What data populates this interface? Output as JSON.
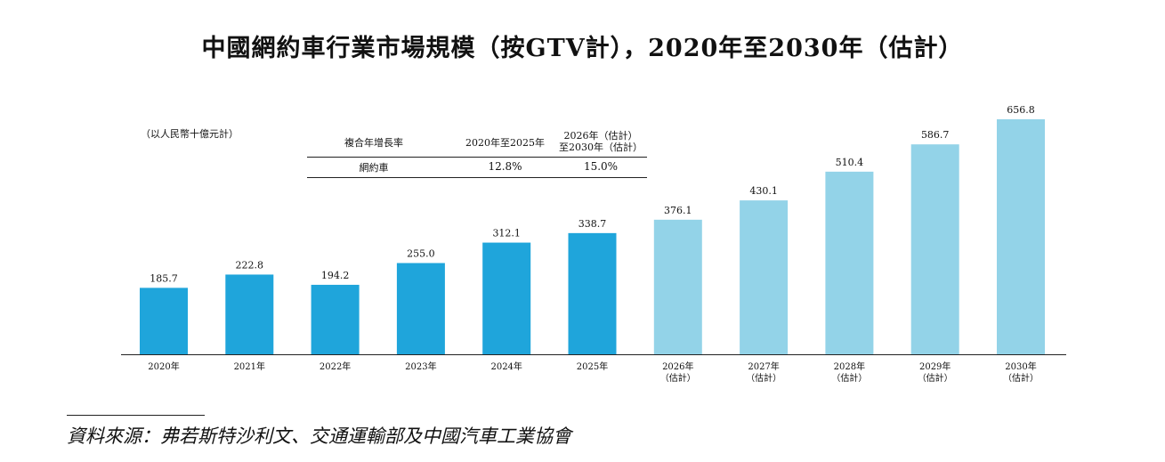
{
  "chart_data": {
    "type": "bar",
    "title": "中國網約車行業市場規模（按GTV計），2020年至2030年（估計）",
    "unit_note": "（以人民幣十億元計）",
    "categories": [
      "2020年",
      "2021年",
      "2022年",
      "2023年",
      "2024年",
      "2025年",
      "2026年",
      "2027年",
      "2028年",
      "2029年",
      "2030年"
    ],
    "category_sublabels": [
      "",
      "",
      "",
      "",
      "",
      "",
      "（估計）",
      "（估計）",
      "（估計）",
      "（估計）",
      "（估計）"
    ],
    "values": [
      185.7,
      222.8,
      194.2,
      255.0,
      312.1,
      338.7,
      376.1,
      430.1,
      510.4,
      586.7,
      656.8
    ],
    "value_labels": [
      "185.7",
      "222.8",
      "194.2",
      "255.0",
      "312.1",
      "338.7",
      "376.1",
      "430.1",
      "510.4",
      "586.7",
      "656.8"
    ],
    "colors": {
      "actual": "#1fa5db",
      "estimated": "#93d3e8"
    },
    "estimated_from_index": 6,
    "ylim": [
      0,
      656.8
    ],
    "grid": false,
    "cagr_table": {
      "header": [
        "複合年增長率",
        "2020年至2025年",
        "2026年（估計）",
        "至2030年（估計）"
      ],
      "row_label": "網約車",
      "values": [
        "12.8%",
        "15.0%"
      ]
    },
    "source": "資料來源：弗若斯特沙利文、交通運輸部及中國汽車工業協會"
  }
}
